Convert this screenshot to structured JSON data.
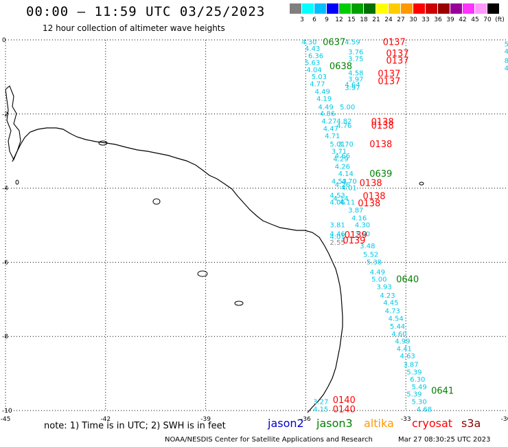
{
  "header": {
    "title": "00:00 — 11:59 UTC 03/25/2023",
    "subtitle": "12 hour collection of altimeter wave heights"
  },
  "legend": {
    "colors": [
      "#7f7f7f",
      "#00ffff",
      "#00bfff",
      "#0000ff",
      "#00cc00",
      "#00a000",
      "#007000",
      "#ffff00",
      "#ffcc00",
      "#ff9900",
      "#ff0000",
      "#cc0000",
      "#990000",
      "#990099",
      "#ff33ff",
      "#ff99ff",
      "#000000"
    ],
    "labels": [
      "3",
      "6",
      "9",
      "12",
      "15",
      "18",
      "21",
      "24",
      "27",
      "30",
      "33",
      "36",
      "39",
      "42",
      "45",
      "70",
      "(ft)"
    ]
  },
  "axes": {
    "x_ticks": [
      "-45",
      "-42",
      "-39",
      "-36",
      "-33",
      "-30"
    ],
    "y_ticks": [
      "0",
      "-2",
      "-4",
      "-6",
      "-8",
      "-10"
    ]
  },
  "colors": {
    "jason2": "#0000cc",
    "jason3": "#007f00",
    "altika": "#ff9900",
    "cryosat": "#ff0000",
    "s3a": "#8b0000",
    "cyan": "#00c8e6",
    "grey": "#888888"
  },
  "satellites": [
    {
      "name": "jason2"
    },
    {
      "name": "jason3"
    },
    {
      "name": "altika"
    },
    {
      "name": "cryosat"
    },
    {
      "name": "s3a"
    }
  ],
  "time_labels": [
    {
      "text": "0637",
      "color": "green",
      "lon": -35.15,
      "lat": -0.05
    },
    {
      "text": "0137",
      "color": "red",
      "lon": -33.35,
      "lat": -0.05
    },
    {
      "text": "0137",
      "color": "red",
      "lon": -33.25,
      "lat": -0.35
    },
    {
      "text": "0137",
      "color": "red",
      "lon": -33.25,
      "lat": -0.55
    },
    {
      "text": "0638",
      "color": "green",
      "lon": -34.95,
      "lat": -0.7
    },
    {
      "text": "0137",
      "color": "red",
      "lon": -33.5,
      "lat": -0.9
    },
    {
      "text": "0137",
      "color": "red",
      "lon": -33.5,
      "lat": -1.1
    },
    {
      "text": "0138",
      "color": "red",
      "lon": -33.7,
      "lat": -2.2
    },
    {
      "text": "0138",
      "color": "red",
      "lon": -33.7,
      "lat": -2.3
    },
    {
      "text": "0138",
      "color": "red",
      "lon": -33.75,
      "lat": -2.8
    },
    {
      "text": "0639",
      "color": "green",
      "lon": -33.75,
      "lat": -3.6
    },
    {
      "text": "0138",
      "color": "red",
      "lon": -34.05,
      "lat": -3.85
    },
    {
      "text": "0138",
      "color": "red",
      "lon": -33.95,
      "lat": -4.2
    },
    {
      "text": "0138",
      "color": "red",
      "lon": -34.1,
      "lat": -4.4
    },
    {
      "text": "0139",
      "color": "red",
      "lon": -34.5,
      "lat": -5.25
    },
    {
      "text": "0139",
      "color": "red",
      "lon": -34.55,
      "lat": -5.4
    },
    {
      "text": "0640",
      "color": "green",
      "lon": -32.95,
      "lat": -6.45
    },
    {
      "text": "0641",
      "color": "green",
      "lon": -31.9,
      "lat": -9.45
    },
    {
      "text": "0140",
      "color": "red",
      "lon": -34.85,
      "lat": -9.7
    },
    {
      "text": "0140",
      "color": "red",
      "lon": -34.85,
      "lat": -9.95
    }
  ],
  "wave_heights": [
    {
      "text": "4.30",
      "lon": -35.9,
      "lat": -0.05
    },
    {
      "text": "4.59",
      "lon": -34.6,
      "lat": -0.05
    },
    {
      "text": "4.43",
      "lon": -35.8,
      "lat": -0.22
    },
    {
      "text": "6.36",
      "lon": -35.7,
      "lat": -0.42
    },
    {
      "text": "3.76",
      "lon": -34.5,
      "lat": -0.32
    },
    {
      "text": "3.75",
      "lon": -34.5,
      "lat": -0.5
    },
    {
      "text": "5.63",
      "lon": -35.8,
      "lat": -0.6
    },
    {
      "text": "4.04",
      "lon": -35.75,
      "lat": -0.8
    },
    {
      "text": "4.58",
      "lon": -34.5,
      "lat": -0.88
    },
    {
      "text": "5.03",
      "lon": -35.6,
      "lat": -0.98
    },
    {
      "text": "3.97",
      "lon": -34.5,
      "lat": -1.05
    },
    {
      "text": "4.77",
      "lon": -35.65,
      "lat": -1.18
    },
    {
      "text": "4.64",
      "lon": -34.6,
      "lat": -1.2
    },
    {
      "text": "3.97",
      "lon": -34.6,
      "lat": -1.28
    },
    {
      "text": "4.49",
      "lon": -35.5,
      "lat": -1.38
    },
    {
      "text": "4.19",
      "lon": -35.45,
      "lat": -1.58
    },
    {
      "text": "4.49",
      "lon": -35.4,
      "lat": -1.8
    },
    {
      "text": "5.00",
      "lon": -34.75,
      "lat": -1.8
    },
    {
      "text": "4.86",
      "lon": -35.35,
      "lat": -1.98
    },
    {
      "text": "4.27",
      "lon": -35.3,
      "lat": -2.18
    },
    {
      "text": "4.82",
      "lon": -34.85,
      "lat": -2.18
    },
    {
      "text": "4.76",
      "lon": -34.85,
      "lat": -2.3
    },
    {
      "text": "4.47",
      "lon": -35.25,
      "lat": -2.38
    },
    {
      "text": "4.71",
      "lon": -35.2,
      "lat": -2.58
    },
    {
      "text": "5.01",
      "lon": -35.05,
      "lat": -2.8
    },
    {
      "text": "3.70",
      "lon": -34.8,
      "lat": -2.8
    },
    {
      "text": "3.71",
      "lon": -35.0,
      "lat": -3.0
    },
    {
      "text": "4.66",
      "lon": -34.9,
      "lat": -3.12
    },
    {
      "text": "4.29",
      "lon": -34.95,
      "lat": -3.2
    },
    {
      "text": "4.26",
      "lon": -34.9,
      "lat": -3.4
    },
    {
      "text": "4.14",
      "lon": -34.8,
      "lat": -3.6
    },
    {
      "text": "4.53",
      "lon": -35.0,
      "lat": -3.8
    },
    {
      "text": "4.70",
      "lon": -34.7,
      "lat": -3.8
    },
    {
      "text": "4.26",
      "lon": -34.9,
      "lat": -3.9
    },
    {
      "text": "4.01",
      "lon": -34.7,
      "lat": -3.98
    },
    {
      "text": "4.53",
      "lon": -35.05,
      "lat": -4.18
    },
    {
      "text": "4.14",
      "lon": -34.95,
      "lat": -4.27
    },
    {
      "text": "4.06",
      "lon": -35.05,
      "lat": -4.37
    },
    {
      "text": "4.11",
      "lon": -34.75,
      "lat": -4.37
    },
    {
      "text": "3.87",
      "lon": -34.5,
      "lat": -4.58
    },
    {
      "text": "4.16",
      "lon": -34.4,
      "lat": -4.8
    },
    {
      "text": "3.81",
      "lon": -35.05,
      "lat": -4.98
    },
    {
      "text": "4.30",
      "lon": -34.3,
      "lat": -4.98
    },
    {
      "text": "4.46",
      "lon": -35.05,
      "lat": -5.22
    },
    {
      "text": "3.60",
      "lon": -34.3,
      "lat": -5.22
    },
    {
      "text": "4.01",
      "lon": -35.05,
      "lat": -5.3
    },
    {
      "text": "3.48",
      "lon": -34.15,
      "lat": -5.55
    },
    {
      "text": "5.52",
      "lon": -34.05,
      "lat": -5.78
    },
    {
      "text": "5.38",
      "lon": -33.95,
      "lat": -5.98
    },
    {
      "text": "4.49",
      "lon": -33.85,
      "lat": -6.25
    },
    {
      "text": "5.00",
      "lon": -33.8,
      "lat": -6.45
    },
    {
      "text": "3.93",
      "lon": -33.65,
      "lat": -6.65
    },
    {
      "text": "4.23",
      "lon": -33.55,
      "lat": -6.88
    },
    {
      "text": "4.45",
      "lon": -33.45,
      "lat": -7.08
    },
    {
      "text": "4.73",
      "lon": -33.4,
      "lat": -7.3
    },
    {
      "text": "4.54",
      "lon": -33.3,
      "lat": -7.5
    },
    {
      "text": "5.44",
      "lon": -33.25,
      "lat": -7.72
    },
    {
      "text": "4.60",
      "lon": -33.2,
      "lat": -7.92
    },
    {
      "text": "4.99",
      "lon": -33.1,
      "lat": -8.12
    },
    {
      "text": "4.41",
      "lon": -33.05,
      "lat": -8.32
    },
    {
      "text": "4.63",
      "lon": -32.95,
      "lat": -8.52
    },
    {
      "text": "3.87",
      "lon": -32.85,
      "lat": -8.75
    },
    {
      "text": "5.39",
      "lon": -32.75,
      "lat": -8.95
    },
    {
      "text": "6.30",
      "lon": -32.65,
      "lat": -9.15
    },
    {
      "text": "5.49",
      "lon": -32.6,
      "lat": -9.35
    },
    {
      "text": "5.39",
      "lon": -32.75,
      "lat": -9.55
    },
    {
      "text": "5.30",
      "lon": -32.6,
      "lat": -9.75
    },
    {
      "text": "4.68",
      "lon": -32.45,
      "lat": -9.95
    },
    {
      "text": "3.27",
      "lon": -35.55,
      "lat": -9.75
    },
    {
      "text": "4.15",
      "lon": -35.55,
      "lat": -9.95
    },
    {
      "text": "5.",
      "lon": -29.95,
      "lat": -0.1
    },
    {
      "text": "4.",
      "lon": -29.95,
      "lat": -0.3
    },
    {
      "text": "8.",
      "lon": -29.95,
      "lat": -0.55
    },
    {
      "text": "4.",
      "lon": -29.95,
      "lat": -0.75
    }
  ],
  "grey_heights": [
    {
      "text": "2.55",
      "lon": -35.05,
      "lat": -5.45
    }
  ],
  "footer": {
    "note": "note:  1) Time is in UTC;  2) SWH is in feet",
    "credit": "NOAA/NESDIS Center for Satellite Applications and Research",
    "timestamp": "Mar 27 08:30:25 UTC 2023"
  }
}
